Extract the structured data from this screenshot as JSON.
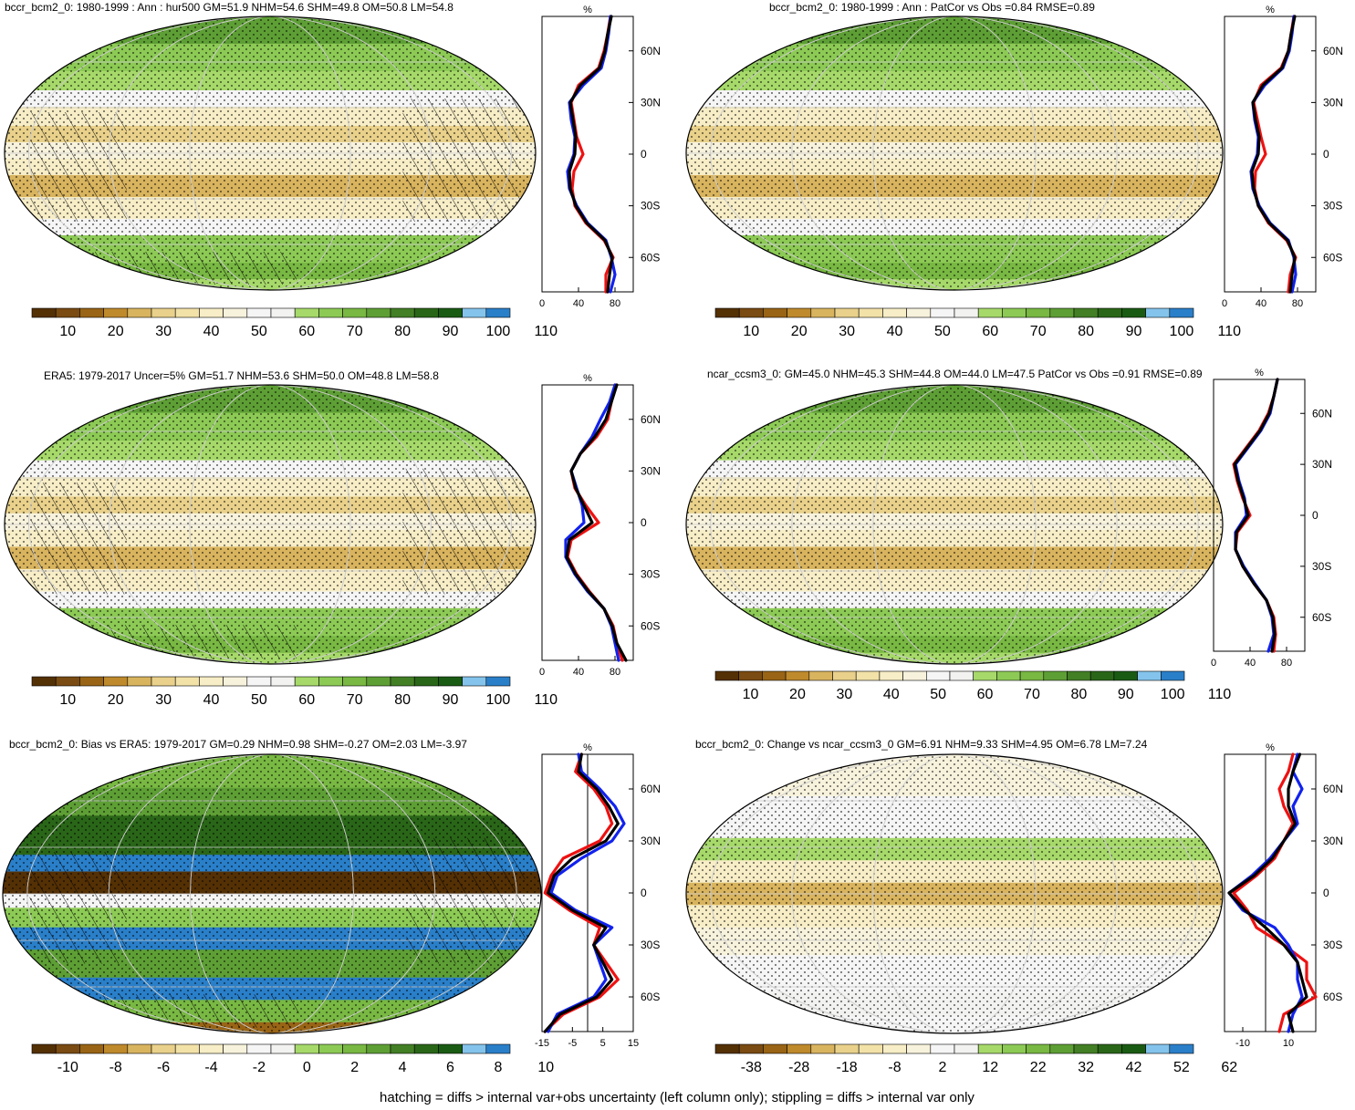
{
  "footer": "hatching = diffs > internal var+obs uncertainty (left column only); stippling = diffs > internal var only",
  "colors": {
    "palette_brown_green_blue": [
      "#543005",
      "#7a4b12",
      "#996415",
      "#bf8a2c",
      "#d9b45f",
      "#e9d18b",
      "#f2e2a8",
      "#f7edc6",
      "#f7f2dc",
      "#f5f5f5",
      "#f2f2f0",
      "#a6d96a",
      "#8cca55",
      "#78b843",
      "#5e9f35",
      "#437f25",
      "#2a6618",
      "#1a5b13",
      "#84c4ec",
      "#2a7fc9"
    ],
    "red": "#ee1111",
    "blue": "#1122ee",
    "black": "#000000"
  },
  "panels": [
    {
      "id": "p1",
      "title": "bccr_bcm2_0: 1980-1999 : Ann : hur500 GM=51.9 NHM=54.6 SHM=49.8 OM=50.8 LM=54.8",
      "colorbar_labels": [
        "10",
        "20",
        "30",
        "40",
        "50",
        "60",
        "70",
        "80",
        "90",
        "100",
        "110"
      ],
      "profile_unit": "%",
      "profile_xticks": [
        "0",
        "40",
        "80"
      ],
      "profile_lat_labels": [
        "60N",
        "30N",
        "0",
        "30S",
        "60S"
      ],
      "chart_data": {
        "type": "line",
        "xlim": [
          0,
          100
        ],
        "ylim": [
          -80,
          80
        ],
        "lat": [
          80,
          70,
          60,
          50,
          40,
          30,
          20,
          10,
          0,
          -10,
          -20,
          -30,
          -40,
          -50,
          -60,
          -70,
          -80
        ],
        "series": [
          {
            "color": "red",
            "values": [
              75,
              72,
              68,
              62,
              40,
              32,
              35,
              38,
              45,
              35,
              33,
              36,
              48,
              68,
              78,
              70,
              70
            ]
          },
          {
            "color": "blue",
            "values": [
              75,
              73,
              70,
              65,
              45,
              30,
              32,
              36,
              35,
              28,
              30,
              38,
              50,
              70,
              76,
              80,
              75
            ]
          },
          {
            "color": "black",
            "values": [
              76,
              72,
              69,
              63,
              42,
              31,
              34,
              37,
              36,
              30,
              31,
              37,
              49,
              69,
              77,
              74,
              72
            ]
          }
        ]
      }
    },
    {
      "id": "p2",
      "title": "bccr_bcm2_0: 1980-1999 : Ann : PatCor vs Obs =0.84 RMSE=0.89",
      "colorbar_labels": [
        "10",
        "20",
        "30",
        "40",
        "50",
        "60",
        "70",
        "80",
        "90",
        "100",
        "110"
      ],
      "profile_unit": "%",
      "profile_xticks": [
        "0",
        "40",
        "80"
      ],
      "profile_lat_labels": [
        "60N",
        "30N",
        "0",
        "30S",
        "60S"
      ],
      "chart_data": {
        "type": "line",
        "xlim": [
          0,
          100
        ],
        "ylim": [
          -80,
          80
        ],
        "lat": [
          80,
          70,
          60,
          50,
          40,
          30,
          20,
          10,
          0,
          -10,
          -20,
          -30,
          -40,
          -50,
          -60,
          -70,
          -80
        ],
        "series": [
          {
            "color": "red",
            "values": [
              76,
              73,
              70,
              62,
              40,
              32,
              36,
              40,
              45,
              34,
              33,
              37,
              48,
              68,
              78,
              72,
              70
            ]
          },
          {
            "color": "blue",
            "values": [
              76,
              74,
              71,
              64,
              44,
              31,
              33,
              37,
              36,
              29,
              31,
              38,
              50,
              70,
              76,
              78,
              74
            ]
          },
          {
            "color": "black",
            "values": [
              77,
              73,
              70,
              63,
              42,
              31,
              34,
              38,
              37,
              30,
              32,
              37,
              49,
              69,
              77,
              74,
              72
            ]
          }
        ]
      }
    },
    {
      "id": "p3",
      "title": "ERA5: 1979-2017 Uncer=5% GM=51.7 NHM=53.6 SHM=50.0 OM=48.8 LM=58.8",
      "colorbar_labels": [
        "10",
        "20",
        "30",
        "40",
        "50",
        "60",
        "70",
        "80",
        "90",
        "100",
        "110"
      ],
      "profile_unit": "%",
      "profile_xticks": [
        "0",
        "40",
        "80"
      ],
      "profile_lat_labels": [
        "60N",
        "30N",
        "0",
        "30S",
        "60S"
      ],
      "chart_data": {
        "type": "line",
        "xlim": [
          0,
          100
        ],
        "ylim": [
          -80,
          80
        ],
        "lat": [
          80,
          70,
          60,
          50,
          40,
          30,
          20,
          10,
          0,
          -10,
          -20,
          -30,
          -40,
          -50,
          -60,
          -70,
          -80
        ],
        "series": [
          {
            "color": "red",
            "values": [
              80,
              76,
              72,
              60,
              42,
              32,
              36,
              48,
              62,
              32,
              28,
              38,
              52,
              68,
              78,
              82,
              88
            ]
          },
          {
            "color": "blue",
            "values": [
              80,
              74,
              64,
              55,
              42,
              32,
              38,
              44,
              46,
              26,
              26,
              36,
              50,
              68,
              76,
              80,
              84
            ]
          },
          {
            "color": "black",
            "values": [
              82,
              76,
              70,
              58,
              42,
              32,
              37,
              46,
              55,
              30,
              27,
              37,
              51,
              68,
              77,
              82,
              92
            ]
          }
        ]
      }
    },
    {
      "id": "p4",
      "title": "ncar_ccsm3_0: GM=45.0 NHM=45.3 SHM=44.8 OM=44.0 LM=47.5 PatCor vs Obs =0.91 RMSE=0.89",
      "colorbar_labels": [
        "10",
        "20",
        "30",
        "40",
        "50",
        "60",
        "70",
        "80",
        "90",
        "100",
        "110"
      ],
      "profile_unit": "%",
      "profile_xticks": [
        "0",
        "40",
        "80"
      ],
      "profile_lat_labels": [
        "60N",
        "30N",
        "0",
        "30S",
        "60S"
      ],
      "chart_data": {
        "type": "line",
        "xlim": [
          0,
          100
        ],
        "ylim": [
          -80,
          80
        ],
        "lat": [
          80,
          70,
          60,
          50,
          40,
          30,
          20,
          10,
          0,
          -10,
          -20,
          -30,
          -40,
          -50,
          -60,
          -70,
          -80
        ],
        "series": [
          {
            "color": "red",
            "values": [
              70,
              66,
              60,
              50,
              36,
              22,
              26,
              32,
              40,
              26,
              24,
              32,
              44,
              58,
              66,
              68,
              66
            ]
          },
          {
            "color": "blue",
            "values": [
              70,
              66,
              62,
              52,
              38,
              24,
              28,
              34,
              36,
              24,
              24,
              33,
              45,
              58,
              64,
              66,
              60
            ]
          },
          {
            "color": "black",
            "values": [
              70,
              66,
              61,
              51,
              37,
              23,
              27,
              33,
              38,
              25,
              24,
              32,
              44,
              58,
              65,
              67,
              64
            ]
          }
        ]
      }
    },
    {
      "id": "p5",
      "title": "bccr_bcm2_0: Bias vs ERA5: 1979-2017 GM=0.29 NHM=0.98 SHM=-0.27 OM=2.03 LM=-3.97",
      "colorbar_labels": [
        "-10",
        "-8",
        "-6",
        "-4",
        "-2",
        "0",
        "2",
        "4",
        "6",
        "8",
        "10"
      ],
      "profile_unit": "%",
      "profile_xticks": [
        "-15",
        "-5",
        "5",
        "15"
      ],
      "profile_lat_labels": [
        "60N",
        "30N",
        "0",
        "30S",
        "60S"
      ],
      "chart_data": {
        "type": "line",
        "xlim": [
          -15,
          15
        ],
        "ylim": [
          -80,
          80
        ],
        "lat": [
          80,
          70,
          60,
          50,
          40,
          30,
          20,
          10,
          0,
          -10,
          -20,
          -30,
          -40,
          -50,
          -60,
          -70,
          -80
        ],
        "series": [
          {
            "color": "red",
            "values": [
              -2,
              -4,
              2,
              6,
              8,
              4,
              -8,
              -12,
              -14,
              -6,
              4,
              2,
              6,
              10,
              4,
              -8,
              -14
            ]
          },
          {
            "color": "blue",
            "values": [
              -3,
              -2,
              4,
              9,
              12,
              8,
              -2,
              -10,
              -12,
              -4,
              8,
              2,
              4,
              6,
              2,
              -10,
              -13
            ]
          },
          {
            "color": "black",
            "values": [
              -2,
              -3,
              3,
              7,
              10,
              6,
              -5,
              -11,
              -13,
              -5,
              6,
              2,
              5,
              8,
              3,
              -9,
              -14
            ]
          }
        ]
      }
    },
    {
      "id": "p6",
      "title": "bccr_bcm2_0: Change vs ncar_ccsm3_0 GM=6.91 NHM=9.33 SHM=4.95 OM=6.78 LM=7.24",
      "colorbar_labels": [
        "-38",
        "-28",
        "-18",
        "-8",
        "2",
        "12",
        "22",
        "32",
        "42",
        "52",
        "62"
      ],
      "profile_unit": "%",
      "profile_xticks": [
        "-10",
        "10"
      ],
      "profile_lat_labels": [
        "60N",
        "30N",
        "0",
        "30S",
        "60S"
      ],
      "chart_data": {
        "type": "line",
        "xlim": [
          -18,
          22
        ],
        "ylim": [
          -80,
          80
        ],
        "lat": [
          80,
          70,
          60,
          50,
          40,
          30,
          20,
          10,
          0,
          -10,
          -20,
          -30,
          -40,
          -50,
          -60,
          -70,
          -80
        ],
        "series": [
          {
            "color": "red",
            "values": [
              12,
              10,
              6,
              8,
              12,
              8,
              4,
              -4,
              -14,
              -8,
              -4,
              8,
              18,
              18,
              22,
              8,
              6
            ]
          },
          {
            "color": "blue",
            "values": [
              14,
              12,
              16,
              12,
              14,
              8,
              2,
              -6,
              -16,
              -10,
              4,
              10,
              14,
              14,
              16,
              12,
              10
            ]
          },
          {
            "color": "black",
            "values": [
              15,
              12,
              10,
              10,
              13,
              8,
              3,
              -5,
              -16,
              -9,
              0,
              8,
              14,
              16,
              18,
              10,
              12
            ]
          }
        ]
      }
    }
  ]
}
